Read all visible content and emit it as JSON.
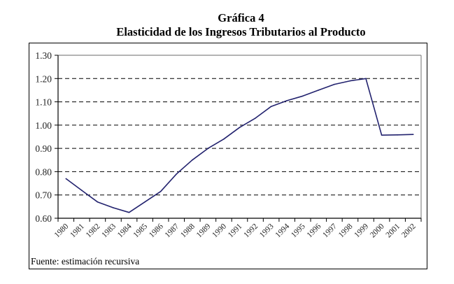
{
  "chart_data": {
    "type": "line",
    "title": "Gráfica 4",
    "subtitle": "Elasticidad de los Ingresos Tributarios al Producto",
    "xlabel": "",
    "ylabel": "",
    "categories": [
      "1980",
      "1981",
      "1982",
      "1983",
      "1984",
      "1985",
      "1986",
      "1987",
      "1988",
      "1989",
      "1990",
      "1991",
      "1992",
      "1993",
      "1994",
      "1995",
      "1996",
      "1997",
      "1998",
      "1999",
      "2000",
      "2001",
      "2002"
    ],
    "series": [
      {
        "name": "Elasticidad",
        "color": "#22226e",
        "values": [
          0.77,
          0.72,
          0.67,
          0.645,
          0.625,
          0.67,
          0.715,
          0.79,
          0.85,
          0.9,
          0.94,
          0.99,
          1.03,
          1.08,
          1.105,
          1.125,
          1.15,
          1.175,
          1.19,
          1.2,
          0.957,
          0.958,
          0.96
        ]
      }
    ],
    "ylim": [
      0.6,
      1.3
    ],
    "yticks": [
      "0.60",
      "0.70",
      "0.80",
      "0.90",
      "1.00",
      "1.10",
      "1.20",
      "1.30"
    ],
    "ytick_values": [
      0.6,
      0.7,
      0.8,
      0.9,
      1.0,
      1.1,
      1.2,
      1.3
    ],
    "grid": "horizontal dashed",
    "legend": "none",
    "source_note": "Fuente: estimación recursiva"
  }
}
